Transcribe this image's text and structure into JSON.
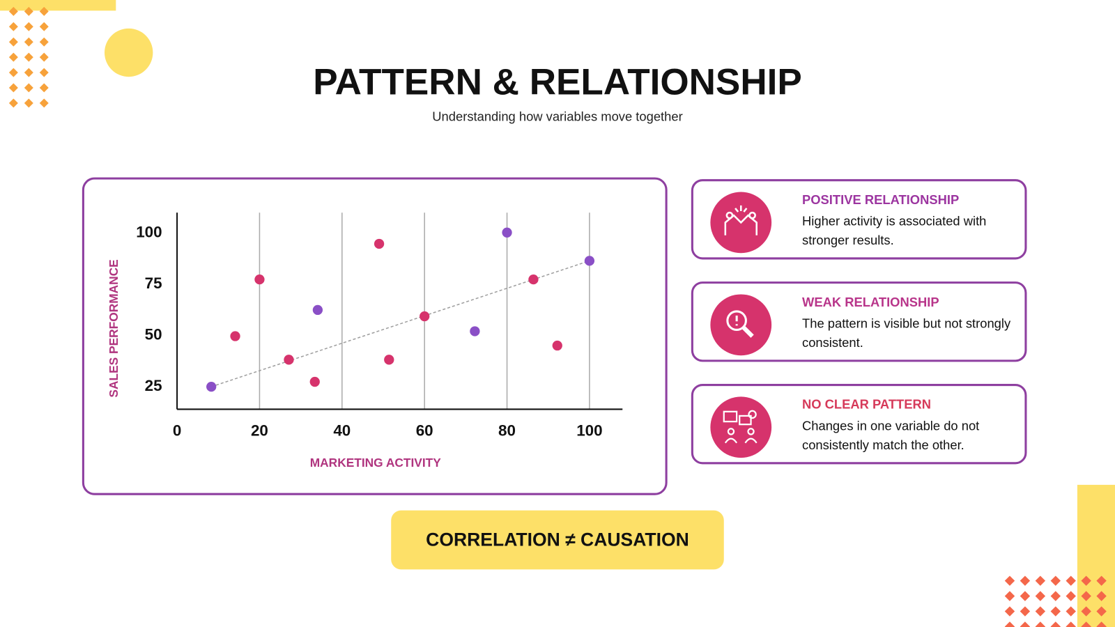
{
  "header": {
    "title": "PATTERN & RELATIONSHIP",
    "subtitle": "Understanding how variables move together"
  },
  "chart_data": {
    "type": "scatter",
    "x_label": "MARKETING ACTIVITY",
    "y_label": "SALES PERFORMANCE",
    "xlim": [
      0,
      108
    ],
    "ylim": [
      14,
      110
    ],
    "xticks": [
      0,
      20,
      40,
      60,
      80,
      100
    ],
    "yticks": [
      25,
      50,
      75,
      100
    ],
    "grid": true,
    "series": [
      {
        "color": "#d6336c",
        "x": [
          14.1,
          20,
          27.1,
          33.4,
          49,
          51.4,
          60,
          86.4,
          92.2
        ],
        "values": [
          49.7,
          77.4,
          38.2,
          27.4,
          94.8,
          38.2,
          59.4,
          77.4,
          45.1
        ]
      },
      {
        "color": "#8a4fc6",
        "x": [
          8.3,
          34.1,
          72.2,
          80,
          100
        ],
        "values": [
          25,
          62.5,
          52.1,
          100.3,
          86.5
        ]
      }
    ],
    "trend_line": {
      "color": "#9e9e9e",
      "x": [
        8.3,
        100
      ],
      "values": [
        25,
        86.5
      ]
    }
  },
  "cards": [
    {
      "title": "POSITIVE RELATIONSHIP",
      "text": "Higher activity is associated with stronger results.",
      "color": "#9c35a0"
    },
    {
      "title": "WEAK RELATIONSHIP",
      "text": "The pattern is visible but not strongly consistent.",
      "color": "#b8358a"
    },
    {
      "title": "NO CLEAR PATTERN",
      "text": "Changes in one variable do not consistently match the other.",
      "color": "#d63a5a"
    }
  ],
  "footer": {
    "text": "CORRELATION ≠ CAUSATION"
  }
}
